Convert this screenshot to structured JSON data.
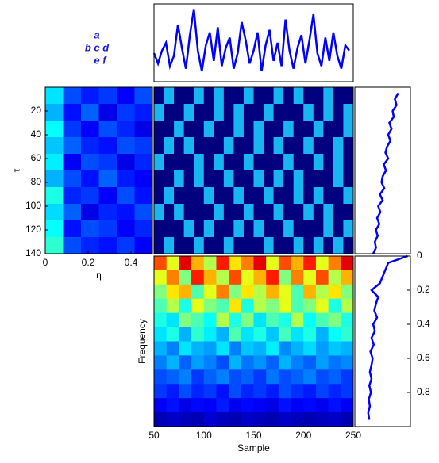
{
  "annotations": [
    "a",
    "b c d",
    "e f"
  ],
  "chart_data": [
    {
      "type": "line",
      "color": "#0000ff",
      "xlim": [
        50,
        250
      ],
      "ylim": [
        -1,
        2
      ],
      "x": [
        50,
        54,
        58,
        62,
        66,
        70,
        74,
        78,
        82,
        86,
        90,
        94,
        98,
        102,
        106,
        110,
        114,
        118,
        122,
        126,
        130,
        134,
        138,
        142,
        146,
        150,
        154,
        158,
        162,
        166,
        170,
        174,
        178,
        182,
        186,
        190,
        194,
        198,
        202,
        206,
        210,
        214,
        218,
        222,
        226,
        230,
        234,
        238,
        242,
        246
      ],
      "values": [
        0.1,
        -0.3,
        0.2,
        0.5,
        -0.4,
        0.0,
        1.2,
        0.3,
        -0.5,
        0.8,
        1.8,
        0.2,
        -0.6,
        0.4,
        0.9,
        -0.2,
        1.1,
        -0.4,
        0.3,
        0.7,
        -0.5,
        0.1,
        1.3,
        0.6,
        -0.3,
        0.2,
        0.9,
        -0.6,
        0.4,
        1.0,
        -0.2,
        0.5,
        -0.4,
        1.4,
        0.2,
        -0.5,
        0.3,
        0.8,
        -0.3,
        0.6,
        1.6,
        0.1,
        -0.4,
        0.7,
        -0.2,
        0.9,
        0.0,
        -0.5,
        0.4,
        0.2
      ]
    },
    {
      "type": "heatmap",
      "xlabel": "η",
      "ylabel": "τ",
      "colormap": "jet",
      "clim": [
        0,
        1
      ],
      "xlim": [
        0,
        0.5
      ],
      "ylim": [
        0,
        140
      ],
      "xticks": [
        0,
        0.2,
        0.4
      ],
      "yticks": [
        20,
        40,
        60,
        80,
        100,
        120,
        140
      ],
      "z": [
        [
          0.35,
          0.2,
          0.15,
          0.18,
          0.12,
          0.2
        ],
        [
          0.3,
          0.14,
          0.22,
          0.1,
          0.18,
          0.15
        ],
        [
          0.38,
          0.18,
          0.12,
          0.2,
          0.16,
          0.1
        ],
        [
          0.32,
          0.22,
          0.16,
          0.14,
          0.2,
          0.18
        ],
        [
          0.36,
          0.12,
          0.2,
          0.18,
          0.1,
          0.16
        ],
        [
          0.3,
          0.2,
          0.14,
          0.22,
          0.15,
          0.12
        ],
        [
          0.4,
          0.16,
          0.18,
          0.12,
          0.2,
          0.14
        ],
        [
          0.34,
          0.22,
          0.1,
          0.16,
          0.14,
          0.2
        ],
        [
          0.38,
          0.14,
          0.2,
          0.18,
          0.12,
          0.16
        ],
        [
          0.42,
          0.2,
          0.16,
          0.14,
          0.18,
          0.12
        ]
      ]
    },
    {
      "type": "heatmap",
      "colors": [
        "#00007f",
        "#19b5f0"
      ],
      "z": [
        [
          0,
          1,
          0,
          0,
          1,
          0,
          1,
          0,
          0,
          1,
          0,
          0,
          1,
          0,
          1,
          0,
          0,
          1,
          0,
          0
        ],
        [
          1,
          0,
          0,
          1,
          0,
          0,
          1,
          0,
          1,
          0,
          0,
          1,
          0,
          0,
          0,
          1,
          0,
          1,
          0,
          1
        ],
        [
          0,
          0,
          1,
          0,
          0,
          1,
          0,
          0,
          1,
          0,
          1,
          0,
          0,
          1,
          0,
          0,
          1,
          0,
          0,
          1
        ],
        [
          0,
          1,
          0,
          1,
          0,
          0,
          0,
          1,
          0,
          0,
          1,
          0,
          1,
          0,
          0,
          1,
          0,
          0,
          1,
          0
        ],
        [
          1,
          0,
          0,
          0,
          1,
          0,
          1,
          0,
          0,
          1,
          0,
          0,
          0,
          1,
          0,
          0,
          1,
          0,
          1,
          0
        ],
        [
          0,
          0,
          1,
          0,
          1,
          0,
          0,
          1,
          0,
          0,
          1,
          0,
          1,
          0,
          1,
          0,
          0,
          0,
          1,
          0
        ],
        [
          0,
          1,
          0,
          0,
          0,
          1,
          0,
          0,
          1,
          0,
          0,
          1,
          0,
          0,
          1,
          0,
          1,
          0,
          0,
          1
        ],
        [
          1,
          0,
          1,
          0,
          0,
          0,
          1,
          0,
          0,
          1,
          0,
          0,
          1,
          0,
          0,
          1,
          0,
          1,
          0,
          0
        ],
        [
          0,
          0,
          0,
          1,
          0,
          1,
          0,
          0,
          1,
          0,
          1,
          0,
          0,
          1,
          0,
          0,
          0,
          1,
          0,
          1
        ],
        [
          0,
          1,
          0,
          0,
          1,
          0,
          0,
          1,
          0,
          0,
          0,
          1,
          0,
          0,
          1,
          0,
          1,
          0,
          1,
          0
        ]
      ]
    },
    {
      "type": "profile",
      "color": "#0000ff",
      "xlim": [
        0,
        1
      ],
      "ylim": [
        0,
        140
      ],
      "y": [
        5,
        10,
        15,
        20,
        25,
        30,
        35,
        40,
        45,
        50,
        55,
        60,
        65,
        70,
        75,
        80,
        85,
        90,
        95,
        100,
        105,
        110,
        115,
        120,
        125,
        130,
        135,
        140
      ],
      "values": [
        0.78,
        0.72,
        0.75,
        0.68,
        0.7,
        0.62,
        0.66,
        0.6,
        0.64,
        0.58,
        0.55,
        0.6,
        0.52,
        0.56,
        0.5,
        0.48,
        0.53,
        0.45,
        0.5,
        0.42,
        0.46,
        0.4,
        0.44,
        0.38,
        0.41,
        0.36,
        0.38,
        0.33
      ]
    },
    {
      "type": "heatmap",
      "xlabel": "Sample",
      "ylabel": "Frequency",
      "colormap": "jet",
      "clim": [
        0,
        1
      ],
      "xlim": [
        50,
        250
      ],
      "ylim": [
        0,
        1
      ],
      "xticks": [
        50,
        100,
        150,
        200,
        250
      ],
      "z": [
        [
          0.8,
          0.6,
          0.9,
          0.7,
          0.55,
          0.85,
          0.65,
          0.75,
          0.9,
          0.6,
          0.8,
          0.7,
          0.85,
          0.6,
          0.75,
          0.9
        ],
        [
          0.6,
          0.75,
          0.5,
          0.85,
          0.7,
          0.55,
          0.8,
          0.6,
          0.7,
          0.85,
          0.5,
          0.75,
          0.6,
          0.8,
          0.55,
          0.7
        ],
        [
          0.5,
          0.65,
          0.7,
          0.45,
          0.6,
          0.75,
          0.5,
          0.65,
          0.55,
          0.7,
          0.6,
          0.45,
          0.7,
          0.55,
          0.65,
          0.5
        ],
        [
          0.45,
          0.55,
          0.4,
          0.6,
          0.5,
          0.45,
          0.65,
          0.4,
          0.55,
          0.5,
          0.6,
          0.45,
          0.5,
          0.6,
          0.4,
          0.55
        ],
        [
          0.4,
          0.35,
          0.5,
          0.45,
          0.38,
          0.55,
          0.4,
          0.5,
          0.35,
          0.45,
          0.4,
          0.55,
          0.38,
          0.45,
          0.5,
          0.4
        ],
        [
          0.35,
          0.4,
          0.3,
          0.42,
          0.36,
          0.3,
          0.45,
          0.35,
          0.4,
          0.32,
          0.44,
          0.35,
          0.4,
          0.3,
          0.38,
          0.42
        ],
        [
          0.3,
          0.25,
          0.35,
          0.3,
          0.28,
          0.35,
          0.25,
          0.32,
          0.3,
          0.36,
          0.26,
          0.3,
          0.34,
          0.28,
          0.32,
          0.3
        ],
        [
          0.25,
          0.3,
          0.22,
          0.28,
          0.25,
          0.2,
          0.3,
          0.24,
          0.27,
          0.22,
          0.3,
          0.25,
          0.22,
          0.28,
          0.24,
          0.26
        ],
        [
          0.2,
          0.22,
          0.25,
          0.18,
          0.22,
          0.25,
          0.2,
          0.22,
          0.18,
          0.24,
          0.2,
          0.22,
          0.25,
          0.2,
          0.22,
          0.18
        ],
        [
          0.18,
          0.15,
          0.2,
          0.16,
          0.18,
          0.14,
          0.2,
          0.16,
          0.18,
          0.15,
          0.2,
          0.17,
          0.15,
          0.19,
          0.16,
          0.18
        ],
        [
          0.12,
          0.14,
          0.1,
          0.13,
          0.12,
          0.15,
          0.11,
          0.13,
          0.12,
          0.1,
          0.14,
          0.12,
          0.13,
          0.11,
          0.14,
          0.12
        ],
        [
          0.05,
          0.07,
          0.06,
          0.05,
          0.08,
          0.06,
          0.05,
          0.07,
          0.06,
          0.05,
          0.07,
          0.06,
          0.05,
          0.06,
          0.07,
          0.05
        ]
      ]
    },
    {
      "type": "profile",
      "color": "#0000ff",
      "xlim": [
        0,
        1
      ],
      "ylim": [
        0,
        1
      ],
      "yticks": [
        0,
        0.2,
        0.4,
        0.6,
        0.8
      ],
      "ytick_side": "right",
      "y": [
        0,
        0.04,
        0.08,
        0.12,
        0.16,
        0.2,
        0.24,
        0.28,
        0.32,
        0.36,
        0.4,
        0.44,
        0.48,
        0.52,
        0.56,
        0.6,
        0.64,
        0.68,
        0.72,
        0.76,
        0.8,
        0.84,
        0.88,
        0.92,
        0.96
      ],
      "values": [
        0.95,
        0.6,
        0.55,
        0.5,
        0.45,
        0.3,
        0.42,
        0.38,
        0.35,
        0.4,
        0.33,
        0.36,
        0.3,
        0.34,
        0.28,
        0.32,
        0.3,
        0.27,
        0.3,
        0.26,
        0.29,
        0.25,
        0.27,
        0.24,
        0.26
      ]
    }
  ]
}
